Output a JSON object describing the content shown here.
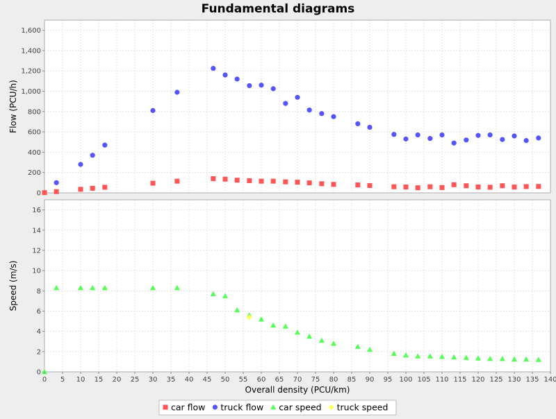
{
  "chart_data": {
    "type": "scatter",
    "title": "Fundamental diagrams",
    "xlabel": "Overall density (PCU/km)",
    "xlim": [
      0,
      140
    ],
    "x_ticks": [
      "0",
      "5",
      "10",
      "15",
      "20",
      "25",
      "30",
      "35",
      "40",
      "45",
      "50",
      "55",
      "60",
      "65",
      "70",
      "75",
      "80",
      "85",
      "90",
      "95",
      "100",
      "105",
      "110",
      "115",
      "120",
      "125",
      "130",
      "135",
      "140"
    ],
    "grid": true,
    "legend_position": "bottom",
    "subplots": [
      {
        "ylabel": "Flow (PCU/h)",
        "ylim": [
          0,
          1700
        ],
        "y_ticks": [
          "0",
          "200",
          "400",
          "600",
          "800",
          "1,000",
          "1,200",
          "1,400",
          "1,600"
        ],
        "series": [
          {
            "name": "car flow",
            "marker": "square",
            "color": "#ff5555",
            "points": [
              [
                0,
                2
              ],
              [
                3.3,
                12
              ],
              [
                10,
                35
              ],
              [
                13.3,
                45
              ],
              [
                16.7,
                55
              ],
              [
                30,
                95
              ],
              [
                36.7,
                115
              ],
              [
                46.7,
                140
              ],
              [
                50,
                135
              ],
              [
                53.3,
                125
              ],
              [
                56.7,
                120
              ],
              [
                60,
                115
              ],
              [
                63.3,
                115
              ],
              [
                66.7,
                108
              ],
              [
                70,
                105
              ],
              [
                73.3,
                98
              ],
              [
                76.7,
                90
              ],
              [
                80,
                83
              ],
              [
                86.7,
                78
              ],
              [
                90,
                72
              ],
              [
                96.7,
                60
              ],
              [
                100,
                58
              ],
              [
                103.3,
                50
              ],
              [
                106.7,
                60
              ],
              [
                110,
                52
              ],
              [
                113.3,
                80
              ],
              [
                116.7,
                70
              ],
              [
                120,
                58
              ],
              [
                123.3,
                55
              ],
              [
                126.7,
                70
              ],
              [
                130,
                57
              ],
              [
                133.3,
                62
              ],
              [
                136.7,
                63
              ]
            ]
          },
          {
            "name": "truck flow",
            "marker": "circle",
            "color": "#5555ff",
            "points": [
              [
                3.3,
                100
              ],
              [
                10,
                280
              ],
              [
                13.3,
                370
              ],
              [
                16.7,
                470
              ],
              [
                30,
                810
              ],
              [
                36.7,
                990
              ],
              [
                46.7,
                1225
              ],
              [
                50,
                1160
              ],
              [
                53.3,
                1120
              ],
              [
                56.7,
                1055
              ],
              [
                60,
                1060
              ],
              [
                63.3,
                1025
              ],
              [
                66.7,
                880
              ],
              [
                70,
                940
              ],
              [
                73.3,
                815
              ],
              [
                76.7,
                780
              ],
              [
                80,
                750
              ],
              [
                86.7,
                680
              ],
              [
                90,
                645
              ],
              [
                96.7,
                575
              ],
              [
                100,
                530
              ],
              [
                103.3,
                570
              ],
              [
                106.7,
                535
              ],
              [
                110,
                570
              ],
              [
                113.3,
                490
              ],
              [
                116.7,
                520
              ],
              [
                120,
                565
              ],
              [
                123.3,
                570
              ],
              [
                126.7,
                525
              ],
              [
                130,
                560
              ],
              [
                133.3,
                515
              ],
              [
                136.7,
                540
              ]
            ]
          }
        ]
      },
      {
        "ylabel": "Speed (m/s)",
        "ylim": [
          0,
          17
        ],
        "y_ticks": [
          "0",
          "2",
          "4",
          "6",
          "8",
          "10",
          "12",
          "14",
          "16"
        ],
        "series": [
          {
            "name": "car speed",
            "marker": "triangle",
            "color": "#55ff55",
            "points": [
              [
                0,
                0
              ],
              [
                3.3,
                8.3
              ],
              [
                10,
                8.3
              ],
              [
                13.3,
                8.3
              ],
              [
                16.7,
                8.3
              ],
              [
                30,
                8.3
              ],
              [
                36.7,
                8.3
              ],
              [
                46.7,
                7.7
              ],
              [
                50,
                7.5
              ],
              [
                53.3,
                6.1
              ],
              [
                56.7,
                5.6
              ],
              [
                60,
                5.2
              ],
              [
                63.3,
                4.6
              ],
              [
                66.7,
                4.5
              ],
              [
                70,
                3.9
              ],
              [
                73.3,
                3.5
              ],
              [
                76.7,
                3.1
              ],
              [
                80,
                2.8
              ],
              [
                86.7,
                2.5
              ],
              [
                90,
                2.2
              ],
              [
                96.7,
                1.8
              ],
              [
                100,
                1.65
              ],
              [
                103.3,
                1.55
              ],
              [
                106.7,
                1.55
              ],
              [
                110,
                1.5
              ],
              [
                113.3,
                1.45
              ],
              [
                116.7,
                1.4
              ],
              [
                120,
                1.35
              ],
              [
                123.3,
                1.3
              ],
              [
                126.7,
                1.3
              ],
              [
                130,
                1.25
              ],
              [
                133.3,
                1.25
              ],
              [
                136.7,
                1.2
              ]
            ]
          },
          {
            "name": "truck speed",
            "marker": "diamond",
            "color": "#ffff55",
            "points": [
              [
                56.7,
                5.4
              ]
            ]
          }
        ]
      }
    ]
  }
}
